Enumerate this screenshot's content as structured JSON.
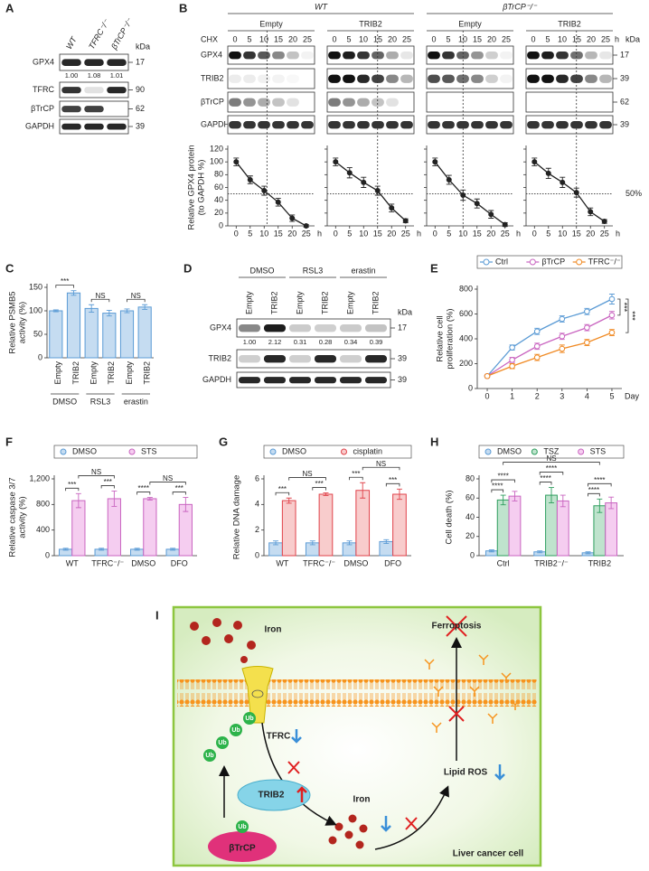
{
  "panel_labels": [
    "A",
    "B",
    "C",
    "D",
    "E",
    "F",
    "G",
    "H",
    "I"
  ],
  "blot_a": {
    "lanes": [
      "WT",
      "TFRC⁻/⁻",
      "βTrCP⁻/⁻"
    ],
    "kda_unit": "kDa",
    "rows": [
      {
        "name": "GPX4",
        "kda": "17",
        "quant": [
          "1.00",
          "1.08",
          "1.01"
        ]
      },
      {
        "name": "TFRC",
        "kda": "90"
      },
      {
        "name": "βTrCP",
        "kda": "62"
      },
      {
        "name": "GAPDH",
        "kda": "39"
      }
    ]
  },
  "blot_b": {
    "genotypes": [
      "WT",
      "βTrCP⁻/⁻"
    ],
    "groups": [
      "Empty",
      "TRIB2",
      "Empty",
      "TRIB2"
    ],
    "time_label": "CHX",
    "times": [
      "0",
      "5",
      "10",
      "15",
      "20",
      "25"
    ],
    "time_unit": "h",
    "kda_unit": "kDa",
    "rows": [
      {
        "name": "GPX4",
        "kda": "17"
      },
      {
        "name": "TRIB2",
        "kda": "39"
      },
      {
        "name": "βTrCP",
        "kda": "62"
      },
      {
        "name": "GAPDH",
        "kda": "39"
      }
    ]
  },
  "blot_d": {
    "groups": [
      "DMSO",
      "RSL3",
      "erastin"
    ],
    "lanes": [
      "Empty",
      "TRIB2",
      "Empty",
      "TRIB2",
      "Empty",
      "TRIB2"
    ],
    "kda_unit": "kDa",
    "rows": [
      {
        "name": "GPX4",
        "kda": "17",
        "quant": [
          "1.00",
          "2.12",
          "0.31",
          "0.28",
          "0.34",
          "0.39"
        ]
      },
      {
        "name": "TRIB2",
        "kda": "39"
      },
      {
        "name": "GAPDH",
        "kda": "39"
      }
    ]
  },
  "chart_data": [
    {
      "type": "line",
      "ylabel": [
        "Relative GPX4 protein",
        "(to GAPDH %)"
      ],
      "x": [
        0,
        5,
        10,
        15,
        20,
        25
      ],
      "xlim": [
        -3,
        28
      ],
      "xticks": [
        0,
        5,
        10,
        15,
        20,
        25
      ],
      "xlabel": "h",
      "ylim": [
        0,
        120
      ],
      "yticks": [
        0,
        20,
        40,
        60,
        80,
        100,
        120
      ],
      "ref_y": 50,
      "ref_x": 11,
      "series": [
        {
          "color": "#222222",
          "values": [
            100,
            72,
            55,
            37,
            12,
            0
          ],
          "errors": [
            6,
            6,
            7,
            6,
            5,
            2
          ]
        }
      ]
    },
    {
      "type": "line",
      "x": [
        0,
        5,
        10,
        15,
        20,
        25
      ],
      "xlim": [
        -3,
        28
      ],
      "xticks": [
        0,
        5,
        10,
        15,
        20,
        25
      ],
      "xlabel": "h",
      "ylim": [
        0,
        120
      ],
      "yticks": [
        0,
        20,
        40,
        60,
        80,
        100,
        120
      ],
      "ref_y": 50,
      "ref_x": 15,
      "series": [
        {
          "color": "#222222",
          "values": [
            100,
            83,
            68,
            55,
            28,
            8
          ],
          "errors": [
            6,
            8,
            8,
            7,
            6,
            3
          ]
        }
      ]
    },
    {
      "type": "line",
      "x": [
        0,
        5,
        10,
        15,
        20,
        25
      ],
      "xlim": [
        -3,
        28
      ],
      "xticks": [
        0,
        5,
        10,
        15,
        20,
        25
      ],
      "xlabel": "h",
      "ylim": [
        0,
        120
      ],
      "yticks": [
        0,
        20,
        40,
        60,
        80,
        100,
        120
      ],
      "ref_y": 50,
      "ref_x": 10,
      "series": [
        {
          "color": "#222222",
          "values": [
            100,
            72,
            48,
            35,
            18,
            2
          ],
          "errors": [
            6,
            7,
            8,
            7,
            6,
            3
          ]
        }
      ]
    },
    {
      "type": "line",
      "x": [
        0,
        5,
        10,
        15,
        20,
        25
      ],
      "xlim": [
        -3,
        28
      ],
      "xticks": [
        0,
        5,
        10,
        15,
        20,
        25
      ],
      "xlabel": "h",
      "ylim": [
        0,
        120
      ],
      "yticks": [
        0,
        20,
        40,
        60,
        80,
        100,
        120
      ],
      "ref_y": 50,
      "ref_label": "50%",
      "ref_x": 15,
      "series": [
        {
          "color": "#222222",
          "values": [
            100,
            82,
            68,
            52,
            22,
            7
          ],
          "errors": [
            6,
            8,
            8,
            7,
            6,
            3
          ]
        }
      ]
    },
    {
      "type": "bar",
      "ylabel": [
        "Relative PSMB5",
        "activity (%)"
      ],
      "categories": [
        "Empty",
        "TRIB2",
        "Empty",
        "TRIB2",
        "Empty",
        "TRIB2"
      ],
      "groups": [
        "DMSO",
        "RSL3",
        "erastin"
      ],
      "ylim": [
        0,
        150
      ],
      "yticks": [
        0,
        50,
        100,
        150
      ],
      "series": [
        {
          "color": "#5b9bd5",
          "fill": "#c5dcf1",
          "values": [
            100,
            138,
            105,
            95,
            100,
            108
          ],
          "errors": [
            2,
            5,
            8,
            6,
            4,
            5
          ]
        }
      ],
      "annotations": [
        {
          "text": "***",
          "bars": [
            0,
            1
          ]
        },
        {
          "text": "NS",
          "bars": [
            2,
            3
          ]
        },
        {
          "text": "NS",
          "bars": [
            4,
            5
          ]
        }
      ]
    },
    {
      "type": "line",
      "ylabel": [
        "Relative cell",
        "proliferation (%)"
      ],
      "x": [
        0,
        1,
        2,
        3,
        4,
        5
      ],
      "xlim": [
        -0.4,
        5.4
      ],
      "xticks": [
        0,
        1,
        2,
        3,
        4,
        5
      ],
      "xlabel": "Day",
      "ylim": [
        0,
        800
      ],
      "yticks": [
        0,
        200,
        400,
        600,
        800
      ],
      "legend": true,
      "series": [
        {
          "name": "Ctrl",
          "color": "#5b9bd5",
          "values": [
            100,
            330,
            460,
            560,
            620,
            720
          ],
          "errors": [
            10,
            20,
            25,
            25,
            25,
            40
          ]
        },
        {
          "name": "βTrCP",
          "color": "#c964c0",
          "values": [
            100,
            230,
            340,
            420,
            490,
            590
          ],
          "errors": [
            10,
            20,
            25,
            25,
            25,
            30
          ]
        },
        {
          "name": "TFRC⁻/⁻",
          "color": "#f08a24",
          "values": [
            100,
            180,
            250,
            320,
            370,
            450
          ],
          "errors": [
            10,
            20,
            25,
            30,
            25,
            25
          ]
        }
      ],
      "annotations": [
        {
          "text": "***",
          "series": [
            0,
            1
          ]
        },
        {
          "text": "***",
          "series": [
            0,
            2
          ]
        }
      ]
    },
    {
      "type": "bar",
      "ylabel": [
        "Relative caspase 3/7",
        "activity (%)"
      ],
      "categories": [
        "WT",
        "TFRC⁻/⁻",
        "DMSO",
        "DFO"
      ],
      "ylim": [
        0,
        1200
      ],
      "yticks": [
        0,
        400,
        800,
        {
          "value": 1200,
          "label": "1,200"
        }
      ],
      "legend": true,
      "series": [
        {
          "name": "DMSO",
          "color": "#5b9bd5",
          "fill": "#c5dcf1",
          "values": [
            100,
            100,
            100,
            100
          ],
          "errors": [
            15,
            15,
            15,
            15
          ]
        },
        {
          "name": "STS",
          "color": "#c964c0",
          "fill": "#f5cdf0",
          "values": [
            860,
            890,
            890,
            800
          ],
          "errors": [
            110,
            120,
            20,
            110
          ]
        }
      ],
      "annotations": [
        {
          "text": "***",
          "bars": [
            0,
            1
          ]
        },
        {
          "text": "***",
          "bars": [
            2,
            3
          ]
        },
        {
          "text": "NS",
          "bars": [
            1,
            3
          ]
        },
        {
          "text": "****",
          "bars": [
            4,
            5
          ]
        },
        {
          "text": "***",
          "bars": [
            6,
            7
          ]
        },
        {
          "text": "NS",
          "bars": [
            5,
            7
          ]
        }
      ]
    },
    {
      "type": "bar",
      "ylabel": [
        "Relative DNA damage"
      ],
      "categories": [
        "WT",
        "TFRC⁻/⁻",
        "DMSO",
        "DFO"
      ],
      "ylim": [
        0,
        6
      ],
      "yticks": [
        0,
        2,
        4,
        6
      ],
      "legend": true,
      "series": [
        {
          "name": "DMSO",
          "color": "#5b9bd5",
          "fill": "#c5dcf1",
          "values": [
            1,
            1,
            1,
            1.1
          ],
          "errors": [
            0.15,
            0.15,
            0.15,
            0.15
          ]
        },
        {
          "name": "cisplatin",
          "color": "#e0424a",
          "fill": "#f8cccc",
          "values": [
            4.3,
            4.8,
            5.1,
            4.8
          ],
          "errors": [
            0.2,
            0.1,
            0.6,
            0.4
          ]
        }
      ],
      "annotations": [
        {
          "text": "***",
          "bars": [
            0,
            1
          ]
        },
        {
          "text": "***",
          "bars": [
            2,
            3
          ]
        },
        {
          "text": "NS",
          "bars": [
            1,
            3
          ]
        },
        {
          "text": "***",
          "bars": [
            4,
            5
          ]
        },
        {
          "text": "***",
          "bars": [
            6,
            7
          ]
        },
        {
          "text": "NS",
          "bars": [
            5,
            7
          ]
        }
      ]
    },
    {
      "type": "bar",
      "ylabel": [
        "Cell death (%)"
      ],
      "categories": [
        "Ctrl",
        "TRIB2⁻/⁻",
        "TRIB2"
      ],
      "ylim": [
        0,
        80
      ],
      "yticks": [
        0,
        20,
        40,
        60,
        80
      ],
      "legend": true,
      "series": [
        {
          "name": "DMSO",
          "color": "#5b9bd5",
          "fill": "#c5dcf1",
          "values": [
            5,
            4,
            3
          ],
          "errors": [
            1,
            1,
            1
          ]
        },
        {
          "name": "TSZ",
          "color": "#2e9e5e",
          "fill": "#bfe3cd",
          "values": [
            58,
            63,
            52
          ],
          "errors": [
            5,
            8,
            7
          ]
        },
        {
          "name": "STS",
          "color": "#c964c0",
          "fill": "#f5cdf0",
          "values": [
            62,
            57,
            55
          ],
          "errors": [
            5,
            6,
            6
          ]
        }
      ],
      "annotations": [
        {
          "text": "****",
          "bars": [
            0,
            1
          ]
        },
        {
          "text": "****",
          "bars": [
            0,
            2
          ]
        },
        {
          "text": "****",
          "bars": [
            3,
            4
          ]
        },
        {
          "text": "****",
          "bars": [
            3,
            5
          ]
        },
        {
          "text": "****",
          "bars": [
            6,
            7
          ]
        },
        {
          "text": "****",
          "bars": [
            6,
            8
          ]
        },
        {
          "text": "NS",
          "bars": [
            1,
            7
          ]
        }
      ]
    }
  ],
  "diagram": {
    "iron_top": "Iron",
    "ferroptosis": "Ferroptosis",
    "tfrc": "TFRC",
    "ub": [
      "Ub",
      "Ub",
      "Ub",
      "Ub",
      "Ub"
    ],
    "trib2": "TRIB2",
    "btrcp": "βTrCP",
    "iron_mid": "Iron",
    "lipid_ros": "Lipid ROS",
    "cell": "Liver cancer cell"
  }
}
